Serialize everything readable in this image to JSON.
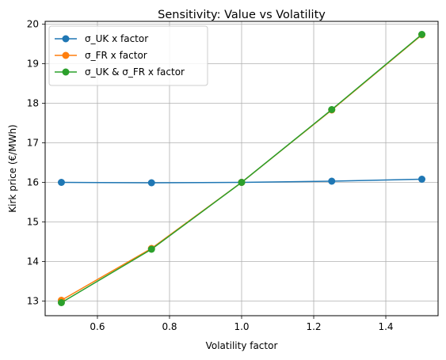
{
  "chart_data": {
    "type": "line",
    "title": "Sensitivity: Value vs Volatility",
    "xlabel": "Volatility factor",
    "ylabel": "Kirk price (€/MWh)",
    "x": [
      0.5,
      0.75,
      1.0,
      1.25,
      1.5
    ],
    "xlim": [
      0.455,
      1.545
    ],
    "ylim": [
      12.63,
      20.07
    ],
    "xticks": [
      0.6,
      0.8,
      1.0,
      1.2,
      1.4
    ],
    "xtick_labels": [
      "0.6",
      "0.8",
      "1.0",
      "1.2",
      "1.4"
    ],
    "yticks": [
      13,
      14,
      15,
      16,
      17,
      18,
      19,
      20
    ],
    "ytick_labels": [
      "13",
      "14",
      "15",
      "16",
      "17",
      "18",
      "19",
      "20"
    ],
    "grid": true,
    "legend_position": "top-left",
    "series": [
      {
        "name": "σ_UK x factor",
        "color": "#1f77b4",
        "values": [
          16.0,
          15.99,
          16.0,
          16.03,
          16.08
        ]
      },
      {
        "name": "σ_FR x factor",
        "color": "#ff7f0e",
        "values": [
          13.02,
          14.33,
          16.0,
          17.83,
          19.73
        ]
      },
      {
        "name": "σ_UK & σ_FR x factor",
        "color": "#2ca02c",
        "values": [
          12.96,
          14.31,
          16.0,
          17.84,
          19.74
        ]
      }
    ]
  }
}
